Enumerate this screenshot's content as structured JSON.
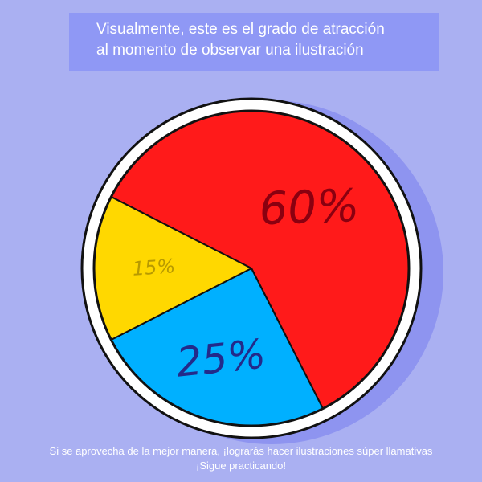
{
  "title": {
    "line1": "Visualmente, este es el grado de atracción",
    "line2": "al momento de observar una ilustración"
  },
  "footer": {
    "line1": "Si se aprovecha de la mejor manera, ¡lograrás hacer ilustraciones súper llamativas",
    "line2": "¡Sigue practicando!"
  },
  "colors": {
    "background": "#aab0f2",
    "title_box": "#8f98f5",
    "shadow": "#8e94f0",
    "rim": "#ffffff",
    "outline": "#111111"
  },
  "chart_data": {
    "type": "pie",
    "slices": [
      {
        "label": "60%",
        "value": 60,
        "color": "#ff1a1a",
        "label_color": "#8a0010"
      },
      {
        "label": "25%",
        "value": 25,
        "color": "#00b0ff",
        "label_color": "#232a8a"
      },
      {
        "label": "15%",
        "value": 15,
        "color": "#ffd800",
        "label_color": "#b89a00"
      }
    ]
  }
}
